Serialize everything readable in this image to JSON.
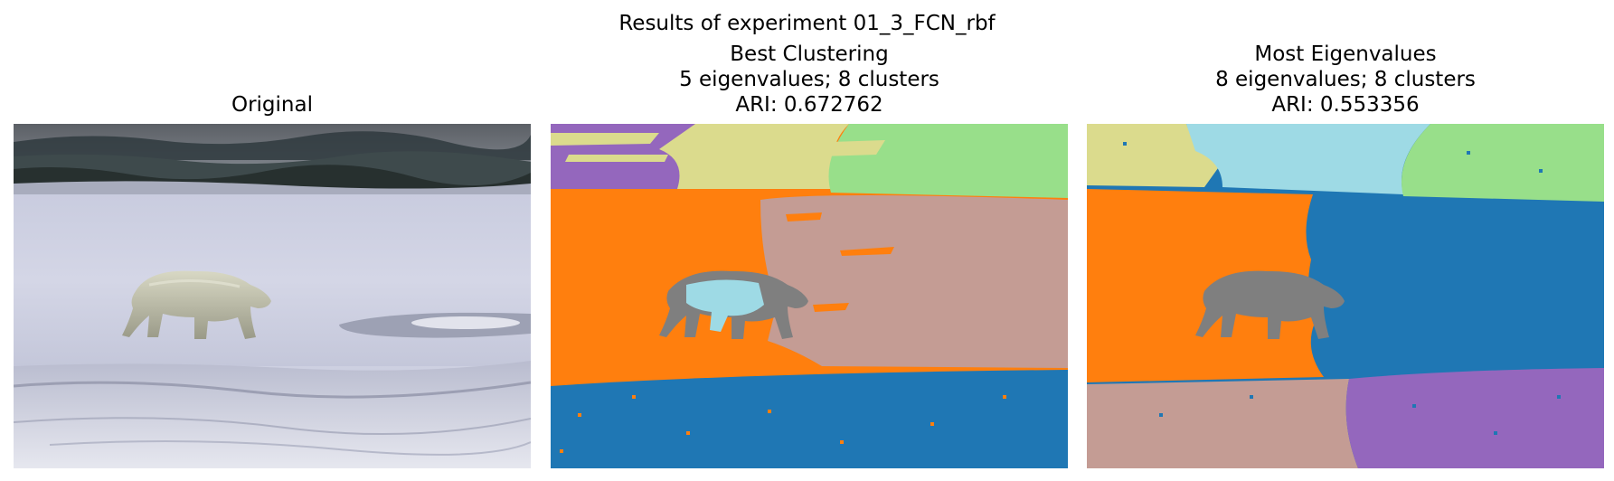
{
  "figure": {
    "suptitle": "Results of experiment 01_3_FCN_rbf"
  },
  "panels": [
    {
      "title_lines": [
        "Original"
      ],
      "image": "polar-bear-on-ice-photo"
    },
    {
      "title_lines": [
        "Best Clustering",
        "5 eigenvalues; 8 clusters",
        "ARI: 0.672762"
      ],
      "image": "segmentation-map",
      "eigenvalues": 5,
      "clusters": 8,
      "ari": 0.672762
    },
    {
      "title_lines": [
        "Most Eigenvalues",
        "8 eigenvalues; 8 clusters",
        "ARI: 0.553356"
      ],
      "image": "segmentation-map",
      "eigenvalues": 8,
      "clusters": 8,
      "ari": 0.553356
    }
  ],
  "palette": {
    "blue": "#1f77b4",
    "orange": "#ff7f0e",
    "purple": "#9467bd",
    "brown_pink": "#c49c94",
    "gray": "#7f7f7f",
    "olive_yellow": "#dbdb8d",
    "light_green": "#98df8a",
    "light_cyan": "#9edae5"
  }
}
